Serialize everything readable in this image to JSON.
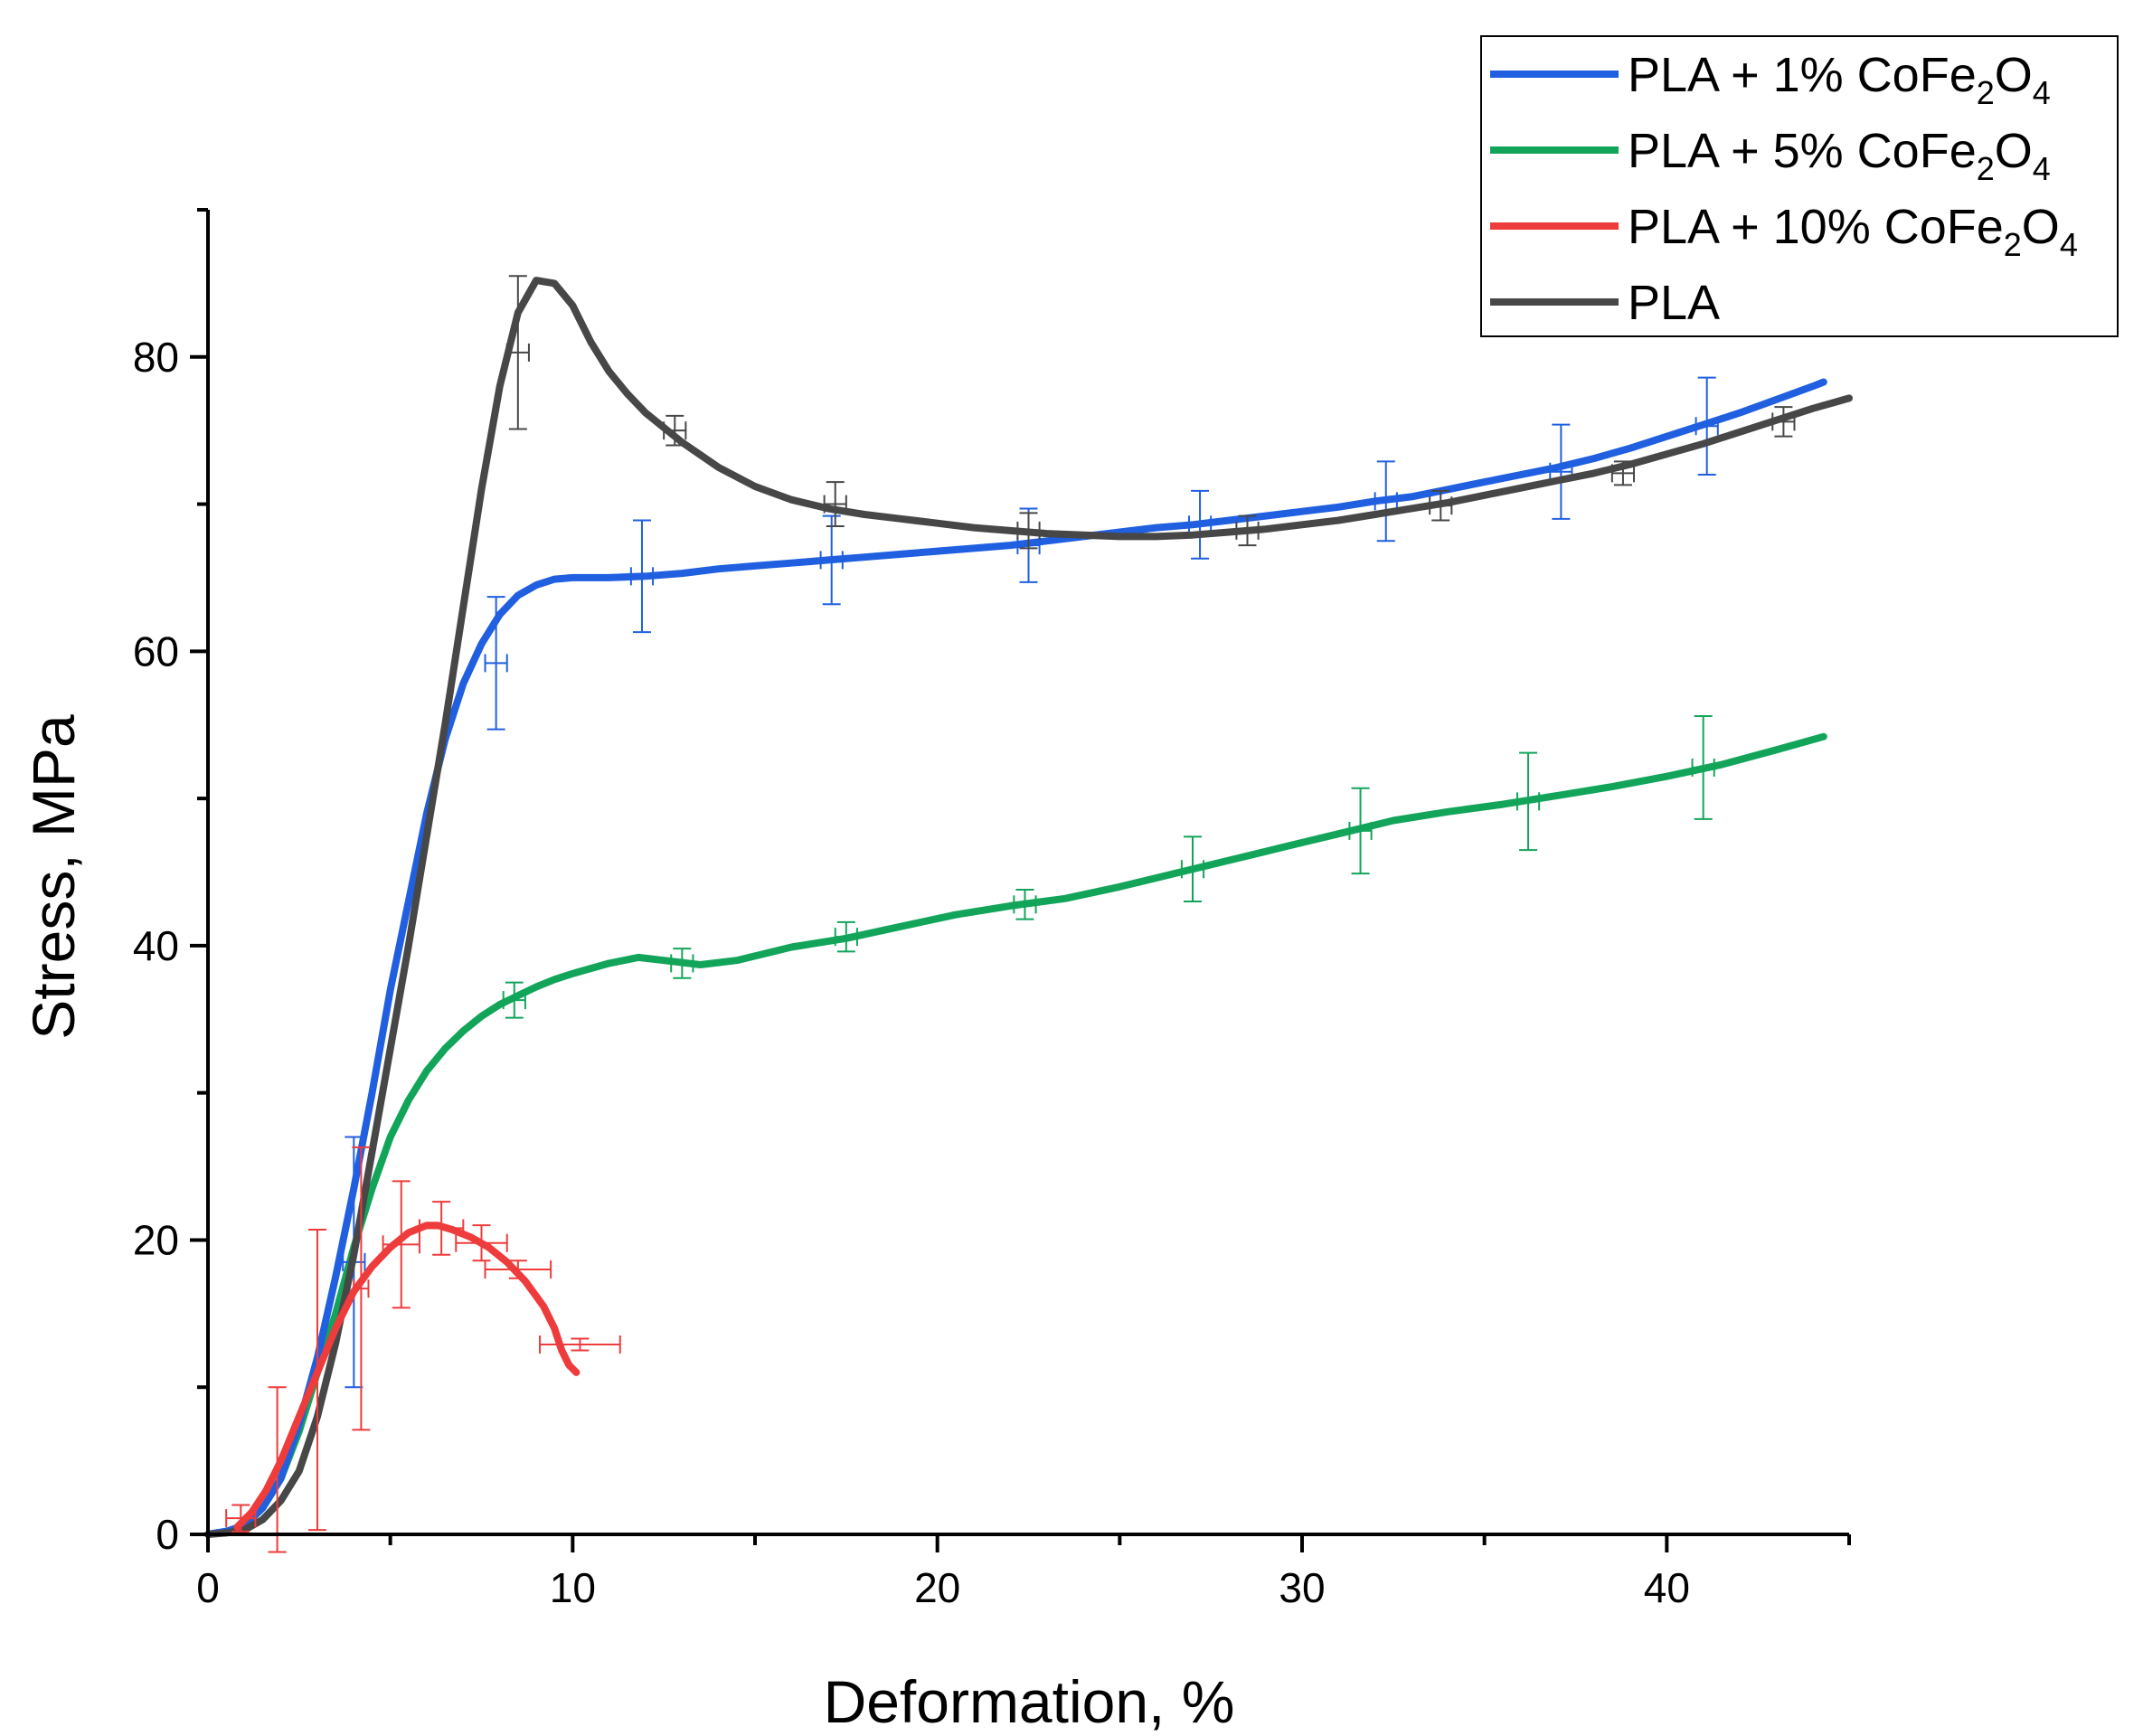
{
  "chart_data": {
    "type": "line",
    "title": "",
    "xlabel": "Deformation, %",
    "ylabel": "Stress, MPa",
    "xlim": [
      0,
      45
    ],
    "ylim": [
      0,
      90
    ],
    "xticks": [
      0,
      10,
      20,
      30,
      40
    ],
    "yticks": [
      0,
      20,
      40,
      60,
      80
    ],
    "x_minor_step": 5,
    "y_minor_step": 10,
    "grid": false,
    "legend_position": "top-right",
    "series": [
      {
        "name": "PLA + 1% CoFe2O4",
        "legend": {
          "pre": "PLA + 1% CoFe",
          "sub1": "2",
          "mid": "O",
          "sub2": "4"
        },
        "color": "#1f5fe0",
        "x": [
          0,
          0.5,
          1,
          1.5,
          2,
          2.5,
          3,
          3.5,
          4,
          4.5,
          5,
          5.5,
          6,
          6.5,
          7,
          7.5,
          8,
          8.5,
          9,
          9.5,
          10,
          11,
          12,
          13,
          14,
          15,
          16,
          17,
          18,
          19,
          20,
          21,
          22,
          23,
          24,
          25,
          26,
          27,
          28,
          29,
          30,
          31,
          32,
          33,
          34,
          35,
          36,
          37,
          38,
          39,
          40,
          41,
          42,
          43,
          44,
          44.3
        ],
        "y": [
          0,
          0.2,
          0.6,
          1.8,
          3.8,
          7.5,
          12,
          17.5,
          23.5,
          30,
          37,
          43,
          49,
          54,
          57.8,
          60.5,
          62.5,
          63.8,
          64.5,
          64.9,
          65,
          65,
          65.1,
          65.3,
          65.6,
          65.8,
          66,
          66.2,
          66.4,
          66.6,
          66.8,
          67,
          67.2,
          67.5,
          67.8,
          68.1,
          68.4,
          68.6,
          68.9,
          69.2,
          69.5,
          69.8,
          70.2,
          70.5,
          71,
          71.5,
          72,
          72.5,
          73.1,
          73.8,
          74.6,
          75.4,
          76.2,
          77.1,
          78,
          78.3
        ],
        "error_bars": [
          {
            "x": 4,
            "y": 18.5,
            "dy": 8.5
          },
          {
            "x": 7.9,
            "y": 59.2,
            "dy": 4.5
          },
          {
            "x": 11.9,
            "y": 65.1,
            "dy": 3.8
          },
          {
            "x": 17.1,
            "y": 66.2,
            "dy": 3
          },
          {
            "x": 22.5,
            "y": 67.2,
            "dy": 2.5
          },
          {
            "x": 27.2,
            "y": 68.6,
            "dy": 2.3
          },
          {
            "x": 32.3,
            "y": 70.2,
            "dy": 2.7
          },
          {
            "x": 37.1,
            "y": 72.2,
            "dy": 3.2
          },
          {
            "x": 41.1,
            "y": 75.3,
            "dy": 3.3
          }
        ]
      },
      {
        "name": "PLA + 5% CoFe2O4",
        "legend": {
          "pre": "PLA + 5% CoFe",
          "sub1": "2",
          "mid": "O",
          "sub2": "4"
        },
        "color": "#12a55a",
        "x": [
          0,
          0.5,
          1,
          1.5,
          2,
          2.5,
          3,
          3.5,
          4,
          4.5,
          5,
          5.5,
          6,
          6.5,
          7,
          7.5,
          8,
          8.5,
          9,
          9.5,
          10,
          11,
          11.8,
          12.5,
          13.5,
          14.5,
          16,
          17.5,
          19,
          20.5,
          22,
          23.5,
          25,
          26.5,
          28,
          29.5,
          31,
          32.5,
          34,
          35.5,
          37,
          38.5,
          40,
          41.5,
          43,
          44.3
        ],
        "y": [
          0,
          0.2,
          0.6,
          1.8,
          3.8,
          7,
          11,
          15,
          19.5,
          23.5,
          27,
          29.5,
          31.5,
          33,
          34.2,
          35.2,
          36,
          36.6,
          37.2,
          37.7,
          38.1,
          38.8,
          39.2,
          39,
          38.7,
          39,
          39.9,
          40.5,
          41.3,
          42.1,
          42.7,
          43.2,
          44,
          44.9,
          45.8,
          46.7,
          47.6,
          48.5,
          49.1,
          49.6,
          50.2,
          50.8,
          51.5,
          52.3,
          53.3,
          54.2
        ],
        "error_bars": [
          {
            "x": 8.4,
            "y": 36.3,
            "dy": 1.2
          },
          {
            "x": 13,
            "y": 38.8,
            "dy": 1
          },
          {
            "x": 17.5,
            "y": 40.6,
            "dy": 1
          },
          {
            "x": 22.4,
            "y": 42.8,
            "dy": 1
          },
          {
            "x": 27,
            "y": 45.2,
            "dy": 2.2
          },
          {
            "x": 31.6,
            "y": 47.8,
            "dy": 2.9
          },
          {
            "x": 36.2,
            "y": 49.8,
            "dy": 3.3
          },
          {
            "x": 41,
            "y": 52.1,
            "dy": 3.5
          }
        ]
      },
      {
        "name": "PLA + 10% CoFe2O4",
        "legend": {
          "pre": "PLA + 10% CoFe",
          "sub1": "2",
          "mid": "O",
          "sub2": "4"
        },
        "color": "#ee3b3b",
        "x": [
          0.8,
          1.2,
          1.6,
          2,
          2.5,
          3,
          3.5,
          4,
          4.5,
          5,
          5.5,
          6,
          6.3,
          6.7,
          7.2,
          7.7,
          8.2,
          8.7,
          9.2,
          9.5,
          9.7,
          9.9,
          10.1
        ],
        "y": [
          0.5,
          1.5,
          3,
          5,
          8,
          11,
          14,
          16.5,
          18.2,
          19.5,
          20.5,
          21,
          21,
          20.7,
          20.2,
          19.5,
          18.5,
          17.2,
          15.5,
          14,
          12.5,
          11.5,
          11
        ],
        "error_bars": [
          {
            "x": 0.9,
            "y": 1.1,
            "dy": 0.9,
            "dx": 0.4
          },
          {
            "x": 1.9,
            "y": 4.4,
            "dy": 5.6,
            "dx": 0
          },
          {
            "x": 3,
            "y": 10.5,
            "dy": 10.2,
            "dx": 0
          },
          {
            "x": 4.2,
            "y": 16.7,
            "dy": 9.6,
            "dx": 0.2
          },
          {
            "x": 5.3,
            "y": 19.7,
            "dy": 4.3,
            "dx": 0.5
          },
          {
            "x": 6.4,
            "y": 20.8,
            "dy": 1.8,
            "dx": 0.6
          },
          {
            "x": 7.5,
            "y": 19.8,
            "dy": 1.2,
            "dx": 0.7
          },
          {
            "x": 8.5,
            "y": 18,
            "dy": 0.6,
            "dx": 0.9
          },
          {
            "x": 10.2,
            "y": 12.9,
            "dy": 0.4,
            "dx": 1.1
          }
        ]
      },
      {
        "name": "PLA",
        "legend": {
          "pre": "PLA",
          "sub1": "",
          "mid": "",
          "sub2": ""
        },
        "color": "#474747",
        "x": [
          0,
          0.5,
          1,
          1.5,
          2,
          2.5,
          3,
          3.5,
          4,
          4.5,
          5,
          5.5,
          6,
          6.5,
          7,
          7.5,
          8,
          8.5,
          9,
          9.5,
          10,
          10.5,
          11,
          11.5,
          12,
          13,
          14,
          15,
          16,
          17,
          18,
          19,
          20,
          21,
          22,
          23,
          24,
          25,
          26,
          27,
          28,
          29,
          30,
          31,
          32,
          33,
          34,
          35,
          36,
          37,
          38,
          39,
          40,
          41,
          42,
          43,
          44,
          45
        ],
        "y": [
          0,
          0.1,
          0.3,
          1,
          2.3,
          4.3,
          8,
          13,
          19,
          26,
          33,
          40,
          47.5,
          55,
          63,
          71,
          78,
          83,
          85.2,
          85,
          83.5,
          81,
          79,
          77.5,
          76.2,
          74.2,
          72.5,
          71.2,
          70.3,
          69.7,
          69.3,
          69,
          68.7,
          68.4,
          68.2,
          68,
          67.9,
          67.8,
          67.8,
          67.9,
          68.1,
          68.3,
          68.6,
          68.9,
          69.3,
          69.7,
          70.1,
          70.6,
          71.1,
          71.6,
          72.1,
          72.7,
          73.4,
          74.1,
          74.9,
          75.7,
          76.5,
          77.2
        ],
        "error_bars": [
          {
            "x": 8.5,
            "y": 80.3,
            "dy": 5.2,
            "dx": 0.3
          },
          {
            "x": 12.8,
            "y": 75,
            "dy": 1,
            "dx": 0.3
          },
          {
            "x": 17.2,
            "y": 70,
            "dy": 1.5,
            "dx": 0.3
          },
          {
            "x": 22.5,
            "y": 68.2,
            "dy": 1.2,
            "dx": 0.3
          },
          {
            "x": 28.5,
            "y": 68.2,
            "dy": 1,
            "dx": 0.3
          },
          {
            "x": 33.8,
            "y": 69.9,
            "dy": 1,
            "dx": 0.3
          },
          {
            "x": 38.8,
            "y": 72.1,
            "dy": 0.8,
            "dx": 0.3
          },
          {
            "x": 43.2,
            "y": 75.6,
            "dy": 1,
            "dx": 0.3
          }
        ]
      }
    ]
  }
}
